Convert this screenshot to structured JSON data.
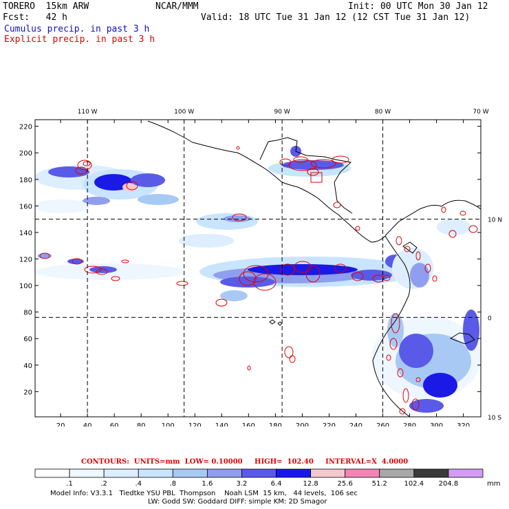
{
  "header": {
    "model": "TORERO  15km ARW",
    "org": "NCAR/MMM",
    "init": "Init: 00 UTC Mon 30 Jan 12",
    "fcst": "Fcst:   42 h",
    "valid": "Valid: 18 UTC Tue 31 Jan 12 (12 CST Tue 31 Jan 12)",
    "cumulus_label": "Cumulus precip. in past 3 h",
    "explicit_label": "Explicit precip. in past 3 h"
  },
  "colors": {
    "cumulus": "#1010c0",
    "explicit": "#e00000",
    "coast": "#000000"
  },
  "map": {
    "lon_labels": [
      "110 W",
      "100 W",
      "90 W",
      "80 W",
      "70 W"
    ],
    "lat_labels": [
      "10 N",
      "0",
      "10 S"
    ],
    "x_ticks": [
      "20",
      "40",
      "60",
      "80",
      "100",
      "120",
      "140",
      "160",
      "180",
      "200",
      "220",
      "240",
      "260",
      "280",
      "300",
      "320"
    ],
    "y_ticks": [
      "20",
      "40",
      "60",
      "80",
      "100",
      "120",
      "140",
      "160",
      "180",
      "200",
      "220"
    ],
    "grid_x": [
      40,
      112,
      185,
      260
    ],
    "grid_y": [
      76,
      150
    ],
    "x_range": [
      1,
      333
    ],
    "y_range": [
      1,
      225
    ]
  },
  "legend": {
    "contours_text": "CONTOURS:  UNITS=mm  LOW= 0.10000     HIGH=  102.40     INTERVAL=X  4.0000",
    "levels": [
      ".1",
      ".2",
      ".4",
      ".8",
      "1.6",
      "3.2",
      "6.4",
      "12.8",
      "25.6",
      "51.2",
      "102.4",
      "204.8"
    ],
    "swatches": [
      "#ffffff",
      "#eef6ff",
      "#dceeff",
      "#c8e4ff",
      "#a9c9f5",
      "#8f9eee",
      "#5a5ae8",
      "#1a1ae6",
      "#f5c8cf",
      "#f285b6",
      "#a8a8a8",
      "#3a3a3a",
      "#d39cf2"
    ],
    "unit": "mm"
  },
  "footer": {
    "line1": "Model Info: V3.3.1   Tiedtke YSU PBL  Thompson    Noah LSM  15 km,   44 levels,  106 sec",
    "line2": "LW: Godd SW: Goddard DIFF: simple KM: 2D Smagor"
  }
}
